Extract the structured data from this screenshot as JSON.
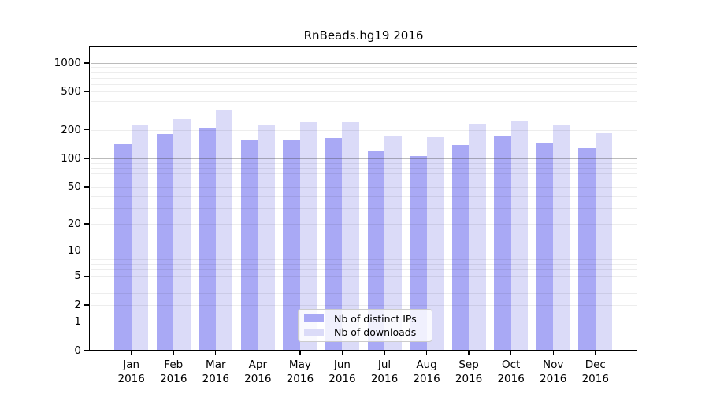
{
  "chart_data": {
    "type": "bar",
    "title": "RnBeads.hg19 2016",
    "categories": [
      "Jan 2016",
      "Feb 2016",
      "Mar 2016",
      "Apr 2016",
      "May 2016",
      "Jun 2016",
      "Jul 2016",
      "Aug 2016",
      "Sep 2016",
      "Oct 2016",
      "Nov 2016",
      "Dec 2016"
    ],
    "series": [
      {
        "name": "Nb of distinct IPs",
        "color": "#a9a9f5",
        "values": [
          140,
          180,
          211,
          156,
          155,
          164,
          122,
          107,
          138,
          170,
          145,
          128
        ]
      },
      {
        "name": "Nb of downloads",
        "color": "#dbdbf8",
        "values": [
          224,
          260,
          318,
          224,
          239,
          239,
          170,
          166,
          232,
          250,
          228,
          184
        ]
      }
    ],
    "xlabel": "",
    "ylabel": "",
    "yscale": "log1p",
    "ylim": [
      0,
      1470
    ],
    "ytick_labels": [
      "0",
      "1",
      "2",
      "5",
      "10",
      "20",
      "50",
      "100",
      "200",
      "500",
      "1000"
    ],
    "yticks": [
      0,
      1,
      2,
      5,
      10,
      20,
      50,
      100,
      200,
      500,
      1000
    ],
    "major_gridlines": [
      1,
      10,
      100,
      1000
    ],
    "minor_gridlines": [
      2,
      3,
      4,
      5,
      6,
      7,
      8,
      9,
      20,
      30,
      40,
      50,
      60,
      70,
      80,
      90,
      200,
      300,
      400,
      500,
      600,
      700,
      800,
      900
    ],
    "grid": true,
    "legend_position": "lower center"
  },
  "legend": {
    "items": [
      {
        "label": "Nb of distinct IPs",
        "color": "#a9a9f5"
      },
      {
        "label": "Nb of downloads",
        "color": "#dbdbf8"
      }
    ]
  }
}
